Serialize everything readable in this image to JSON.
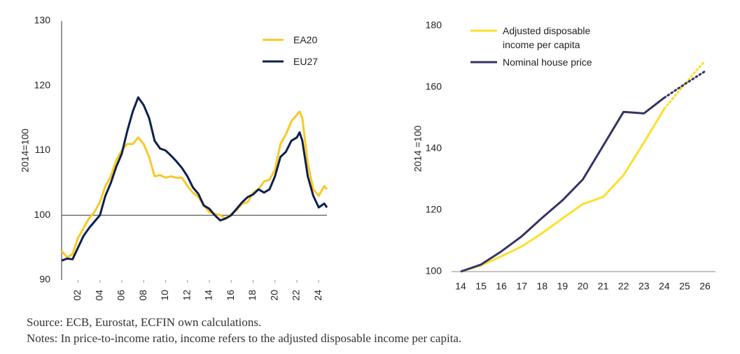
{
  "chart_data": [
    {
      "type": "line",
      "y_label": "2014=100",
      "x": [
        2000.5,
        2001,
        2001.5,
        2002,
        2002.5,
        2003,
        2003.5,
        2004,
        2004.5,
        2005,
        2005.5,
        2006,
        2006.5,
        2007,
        2007.5,
        2008,
        2008.5,
        2009,
        2009.5,
        2010,
        2010.5,
        2011,
        2011.5,
        2012,
        2012.5,
        2013,
        2013.5,
        2014,
        2014.5,
        2015,
        2015.5,
        2016,
        2016.5,
        2017,
        2017.5,
        2018,
        2018.5,
        2019,
        2019.5,
        2020,
        2020.5,
        2021,
        2021.5,
        2022,
        2022.25,
        2022.5,
        2023,
        2023.5,
        2024,
        2024.5,
        2024.75
      ],
      "xlim": [
        2000.5,
        2024.75
      ],
      "xticks": [
        {
          "value": 2002,
          "label": "02"
        },
        {
          "value": 2004,
          "label": "04"
        },
        {
          "value": 2006,
          "label": "06"
        },
        {
          "value": 2008,
          "label": "08"
        },
        {
          "value": 2010,
          "label": "10"
        },
        {
          "value": 2012,
          "label": "12"
        },
        {
          "value": 2014,
          "label": "14"
        },
        {
          "value": 2016,
          "label": "16"
        },
        {
          "value": 2018,
          "label": "18"
        },
        {
          "value": 2020,
          "label": "20"
        },
        {
          "value": 2022,
          "label": "22"
        },
        {
          "value": 2024,
          "label": "24"
        }
      ],
      "ylim": [
        90,
        130
      ],
      "yticks": [
        90,
        100,
        110,
        120,
        130
      ],
      "baseline": 100,
      "legend": "top-right",
      "series": [
        {
          "name": "EA20",
          "color": "#f9c823",
          "values": [
            94.5,
            93.5,
            94,
            96.5,
            98,
            99.5,
            100.5,
            102,
            104.5,
            106,
            108.5,
            110,
            111,
            111,
            112,
            111,
            109,
            106,
            106.2,
            105.8,
            106,
            105.8,
            105.8,
            104.5,
            103.5,
            102.8,
            101.5,
            100.5,
            100.2,
            100,
            99.5,
            100.2,
            100.8,
            101.8,
            102,
            103.5,
            104,
            105.2,
            105.5,
            107,
            111,
            112.5,
            114.5,
            115.5,
            116,
            115,
            108,
            104,
            103,
            104.5,
            104
          ]
        },
        {
          "name": "EU27",
          "color": "#0c1f4e",
          "values": [
            93,
            93.3,
            93.2,
            95,
            96.8,
            98,
            99,
            100,
            103,
            105,
            107.5,
            109.5,
            113,
            116,
            118.2,
            117,
            115,
            111.5,
            110.3,
            110,
            109.2,
            108.3,
            107.3,
            106,
            104.3,
            103.3,
            101.5,
            101,
            100,
            99.2,
            99.5,
            100,
            101,
            102,
            102.8,
            103.2,
            104,
            103.5,
            104,
            106,
            109,
            109.8,
            111.5,
            112,
            112.8,
            111.5,
            106,
            103,
            101.2,
            101.8,
            101.2
          ]
        }
      ]
    },
    {
      "type": "line",
      "y_label": "2014 =100",
      "categories": [
        "14",
        "15",
        "16",
        "17",
        "18",
        "19",
        "20",
        "21",
        "22",
        "23",
        "24",
        "25",
        "26"
      ],
      "ylim": [
        100,
        180
      ],
      "yticks": [
        100,
        120,
        140,
        160,
        180
      ],
      "legend": "top-left",
      "dotted_from": 10,
      "series": [
        {
          "name": "Adjusted disposable income per capita",
          "color": "#fde02b",
          "values": [
            100,
            102,
            105,
            108.2,
            112.5,
            117.3,
            122,
            124.3,
            131.4,
            142,
            153,
            161,
            168.6
          ]
        },
        {
          "name": "Nominal house price",
          "color": "#333366",
          "values": [
            100,
            102.3,
            106.6,
            111.5,
            117.5,
            123.2,
            130,
            141,
            152,
            151.5,
            156.6,
            161,
            165.2
          ]
        }
      ]
    }
  ],
  "source": "Source: ECB, Eurostat, ECFIN own calculations.",
  "notes": "Notes: In price-to-income ratio, income refers to the adjusted disposable income per capita."
}
